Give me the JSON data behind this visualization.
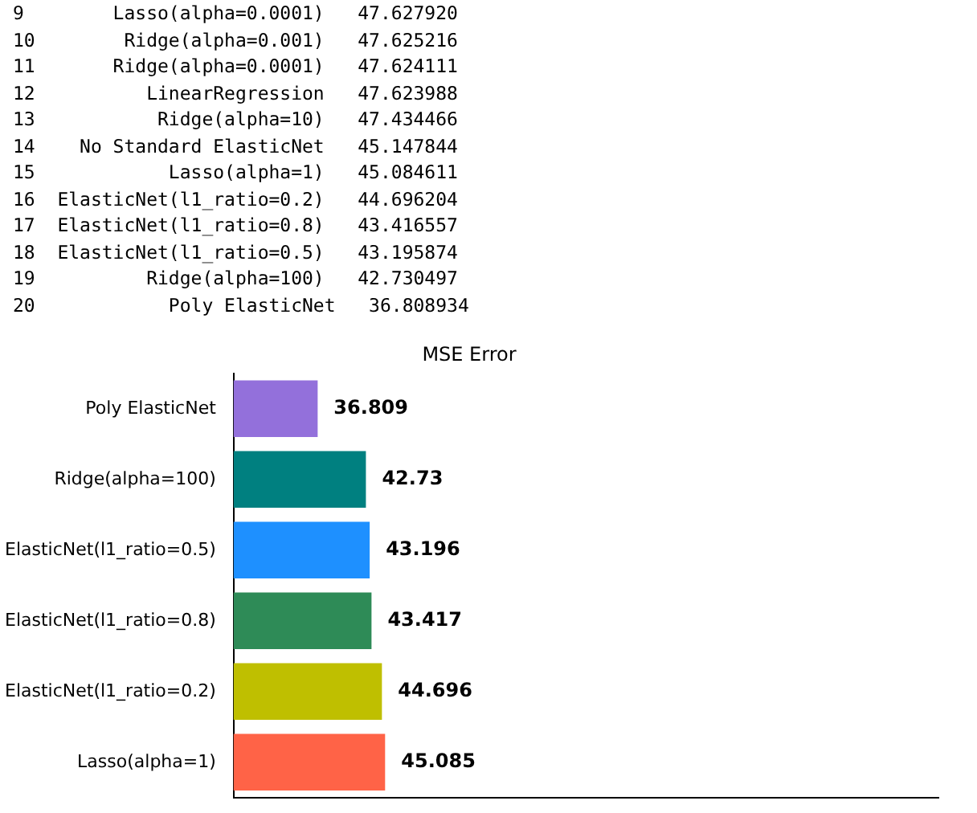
{
  "chart_data": {
    "type": "bar",
    "orientation": "horizontal",
    "title": "MSE Error",
    "annotations": [
      "9        Lasso(alpha=0.0001)   47.627920",
      "10        Ridge(alpha=0.001)   47.625216",
      "11       Ridge(alpha=0.0001)   47.624111",
      "12          LinearRegression   47.623988",
      "13           Ridge(alpha=10)   47.434466",
      "14    No Standard ElasticNet   45.147844",
      "15            Lasso(alpha=1)   45.084611",
      "16  ElasticNet(l1_ratio=0.2)   44.696204",
      "17  ElasticNet(l1_ratio=0.8)   43.416557",
      "18  ElasticNet(l1_ratio=0.5)   43.195874",
      "19          Ridge(alpha=100)   42.730497",
      "20            Poly ElasticNet   36.808934"
    ],
    "categories": [
      "Poly ElasticNet",
      "Ridge(alpha=100)",
      "ElasticNet(l1_ratio=0.5)",
      "ElasticNet(l1_ratio=0.8)",
      "ElasticNet(l1_ratio=0.2)",
      "Lasso(alpha=1)"
    ],
    "values": [
      36.809,
      42.73,
      43.196,
      43.417,
      44.696,
      45.085
    ],
    "colors": [
      "#9370db",
      "#008080",
      "#1e90ff",
      "#2e8b57",
      "#bfbf00",
      "#ff6347"
    ],
    "xlim": [
      26.5,
      113
    ],
    "tick_labels": "y",
    "data_labels": true,
    "grid": false,
    "legend": false
  }
}
